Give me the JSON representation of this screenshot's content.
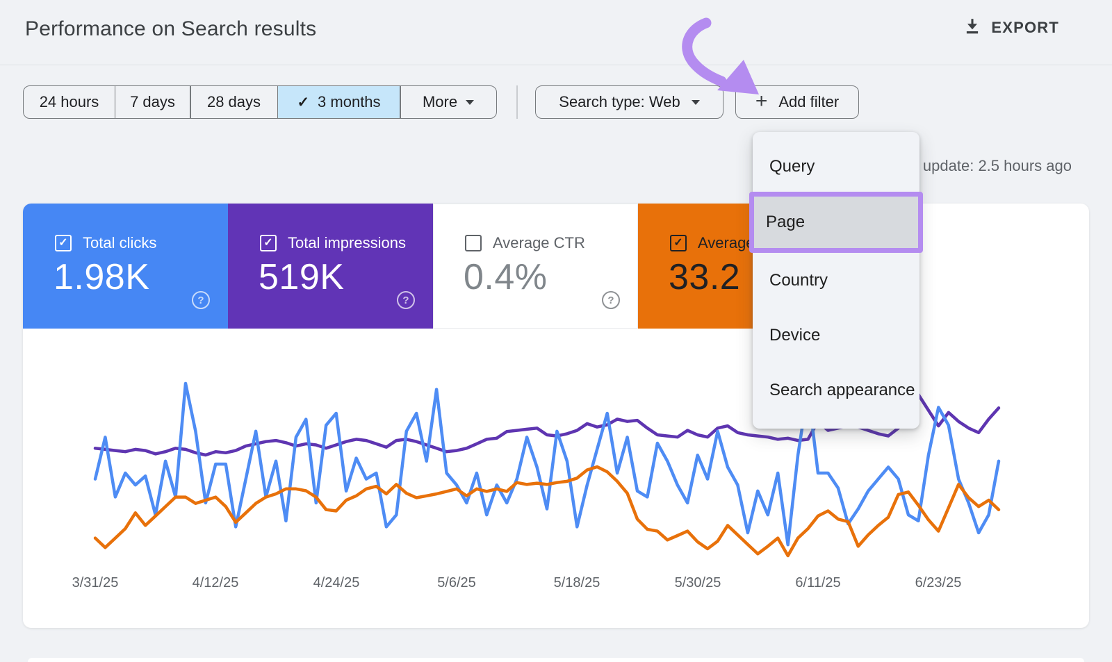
{
  "header": {
    "title": "Performance on Search results",
    "export_label": "EXPORT"
  },
  "filters": {
    "date_ranges": [
      {
        "label": "24 hours",
        "selected": false
      },
      {
        "label": "7 days",
        "selected": false
      },
      {
        "label": "28 days",
        "selected": false
      },
      {
        "label": "3 months",
        "selected": true
      },
      {
        "label": "More",
        "selected": false
      }
    ],
    "search_type_label": "Search type: Web",
    "add_filter_label": "Add filter"
  },
  "last_update": "Last update: 2.5 hours ago",
  "dropdown": {
    "items": [
      "Query",
      "Page",
      "Country",
      "Device",
      "Search appearance"
    ],
    "highlighted": "Page"
  },
  "annotations": {
    "arrow_color": "#b48cf0",
    "highlight_border_color": "#b48cf0"
  },
  "metrics": [
    {
      "label": "Total clicks",
      "value": "1.98K",
      "checked": true,
      "bg": "#4687f4",
      "fg": "#ffffff",
      "value_color": "#ffffff"
    },
    {
      "label": "Total impressions",
      "value": "519K",
      "checked": true,
      "bg": "#6134b6",
      "fg": "#ffffff",
      "value_color": "#ffffff"
    },
    {
      "label": "Average CTR",
      "value": "0.4%",
      "checked": false,
      "bg": "#ffffff",
      "fg": "#5f6368",
      "value_color": "#80868b"
    },
    {
      "label": "Average position",
      "value": "33.2",
      "checked": true,
      "bg": "#e8710a",
      "fg": "#202124",
      "value_color": "#202124"
    }
  ],
  "chart_data": {
    "type": "line",
    "x_tick_labels": [
      "3/31/25",
      "4/12/25",
      "4/24/25",
      "5/6/25",
      "5/18/25",
      "5/30/25",
      "6/11/25",
      "6/23/25"
    ],
    "y_axis": "hidden",
    "grid": false,
    "legend": "metric cards act as legend",
    "series": [
      {
        "name": "Total clicks",
        "unit": "clicks per day",
        "color": "#4e8cf4",
        "values": [
          28,
          42,
          22,
          30,
          26,
          29,
          16,
          34,
          22,
          60,
          44,
          20,
          33,
          33,
          12,
          28,
          44,
          22,
          34,
          14,
          42,
          48,
          20,
          46,
          50,
          24,
          35,
          28,
          30,
          12,
          16,
          44,
          50,
          34,
          58,
          30,
          26,
          20,
          30,
          16,
          26,
          20,
          28,
          42,
          32,
          18,
          44,
          34,
          12,
          26,
          38,
          50,
          30,
          42,
          24,
          22,
          40,
          34,
          26,
          20,
          36,
          28,
          44,
          32,
          26,
          10,
          24,
          16,
          30,
          6,
          36,
          58,
          30,
          30,
          25,
          13,
          18,
          24,
          28,
          32,
          28,
          16,
          14,
          36,
          52,
          46,
          28,
          20,
          10,
          16,
          34
        ]
      },
      {
        "name": "Total impressions",
        "unit": "impressions per day",
        "color": "#5e35b1",
        "values": [
          5900,
          5850,
          5800,
          5750,
          5850,
          5800,
          5650,
          5750,
          5900,
          5850,
          5700,
          5600,
          5750,
          5700,
          5800,
          6000,
          6100,
          6200,
          6250,
          6150,
          6000,
          6100,
          6050,
          5900,
          6050,
          6200,
          6300,
          6250,
          6100,
          5950,
          6250,
          6300,
          6200,
          6050,
          5900,
          5750,
          5800,
          5900,
          6100,
          6300,
          6350,
          6650,
          6700,
          6750,
          6800,
          6500,
          6450,
          6550,
          6700,
          7000,
          6850,
          6950,
          7200,
          7100,
          7150,
          6800,
          6500,
          6450,
          6400,
          6700,
          6500,
          6400,
          6800,
          6900,
          6600,
          6500,
          6450,
          6400,
          6300,
          6350,
          6250,
          6300,
          7100,
          6700,
          6800,
          6900,
          6850,
          6700,
          6550,
          6450,
          6800,
          7600,
          8300,
          7600,
          6900,
          7500,
          7100,
          6800,
          6600,
          7200,
          7700
        ]
      },
      {
        "name": "Average position",
        "unit": "average position",
        "color": "#e8710a",
        "values": [
          43,
          44.5,
          43,
          41.5,
          39,
          41,
          39.5,
          38,
          36.5,
          36.5,
          37.5,
          37,
          36.5,
          38,
          40.5,
          39,
          37.5,
          36.5,
          36,
          35.2,
          35.2,
          35.5,
          36.5,
          38.5,
          38.7,
          37,
          36.3,
          35.2,
          34.8,
          36,
          34.5,
          35.9,
          36.6,
          36.3,
          36,
          35.6,
          35.2,
          36.3,
          35.2,
          35.6,
          35.2,
          35.6,
          34.2,
          34.5,
          34.3,
          34.5,
          34.2,
          34,
          33.5,
          32.2,
          31.7,
          32.5,
          34,
          35.9,
          40,
          41.6,
          41.9,
          43.3,
          42.6,
          41.9,
          43.6,
          44.7,
          43.5,
          41,
          42.5,
          44,
          45.5,
          44.3,
          43,
          45.8,
          43,
          41.5,
          39.5,
          38.7,
          40,
          40.4,
          44.3,
          42.5,
          41,
          39.7,
          36.1,
          35.7,
          37.8,
          40.1,
          41.9,
          38.2,
          34.5,
          36.6,
          38,
          37,
          38.5
        ]
      }
    ]
  }
}
